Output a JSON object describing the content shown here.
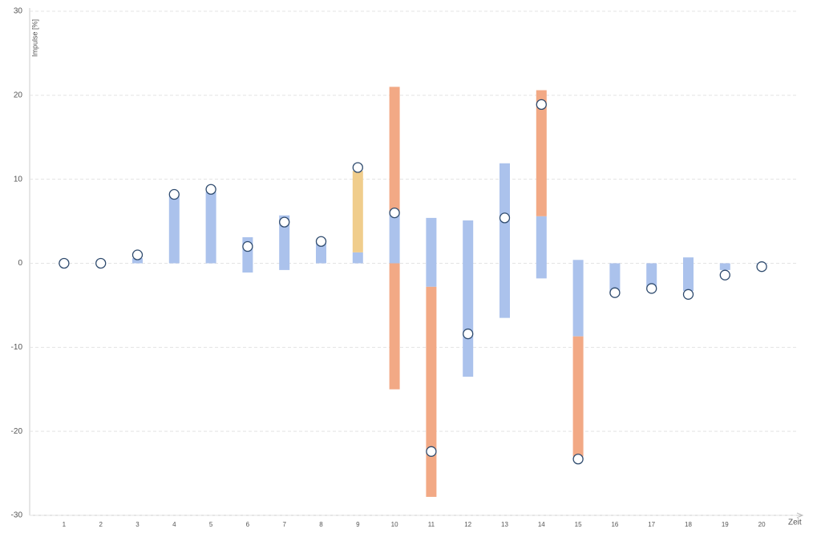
{
  "chart_data": {
    "type": "range-bar",
    "y_label": "Impulse [%]",
    "x_label": "Zeit",
    "categories": [
      "1",
      "2",
      "3",
      "4",
      "5",
      "6",
      "7",
      "8",
      "9",
      "10",
      "11",
      "12",
      "13",
      "14",
      "15",
      "16",
      "17",
      "18",
      "19",
      "20"
    ],
    "ylim": [
      -30,
      30
    ],
    "yticks": [
      -30,
      -20,
      -10,
      0,
      10,
      20,
      30
    ],
    "grid": true,
    "ranges": [
      {
        "color": "#abc2ec",
        "low": [
          null,
          null,
          0,
          0,
          0,
          -1.1,
          -0.8,
          0,
          0,
          0,
          -2.8,
          -13.5,
          -6.5,
          -1.8,
          -8.7,
          -3.3,
          -2.8,
          -3.3,
          -0.8,
          -0.1
        ],
        "high": [
          null,
          null,
          0.6,
          8,
          8.5,
          3.1,
          5.7,
          2.5,
          1.3,
          6,
          5.4,
          5.1,
          11.9,
          5.6,
          0.4,
          0,
          0,
          0.7,
          0,
          0
        ]
      },
      {
        "color": "#f2a985",
        "low": [
          null,
          null,
          null,
          null,
          null,
          null,
          null,
          null,
          null,
          -15,
          -27.8,
          null,
          null,
          5.6,
          -23,
          null,
          null,
          null,
          null,
          null
        ],
        "high": [
          null,
          null,
          null,
          null,
          null,
          null,
          null,
          null,
          null,
          0,
          -2.8,
          null,
          null,
          20.6,
          -8.7,
          null,
          null,
          null,
          null,
          null
        ]
      },
      {
        "color": "#f2a985",
        "low": [
          null,
          null,
          null,
          null,
          null,
          null,
          null,
          null,
          null,
          6,
          null,
          null,
          null,
          null,
          null,
          null,
          null,
          null,
          null,
          null
        ],
        "high": [
          null,
          null,
          null,
          null,
          null,
          null,
          null,
          null,
          null,
          21,
          null,
          null,
          null,
          null,
          null,
          null,
          null,
          null,
          null,
          null
        ]
      },
      {
        "color": "#f0cd8c",
        "low": [
          null,
          null,
          null,
          null,
          null,
          null,
          null,
          null,
          1.3,
          null,
          null,
          null,
          null,
          null,
          null,
          null,
          null,
          null,
          null,
          null
        ],
        "high": [
          null,
          null,
          null,
          null,
          null,
          null,
          null,
          null,
          11,
          null,
          null,
          null,
          null,
          null,
          null,
          null,
          null,
          null,
          null,
          null
        ]
      }
    ],
    "points": {
      "color": "#2f4b6e",
      "values": [
        0,
        0,
        1.0,
        8.2,
        8.8,
        2.0,
        4.9,
        2.6,
        11.4,
        6.0,
        -22.4,
        -8.4,
        5.4,
        18.9,
        -23.3,
        -3.5,
        -3.0,
        -3.7,
        -1.4,
        -0.4
      ]
    }
  }
}
